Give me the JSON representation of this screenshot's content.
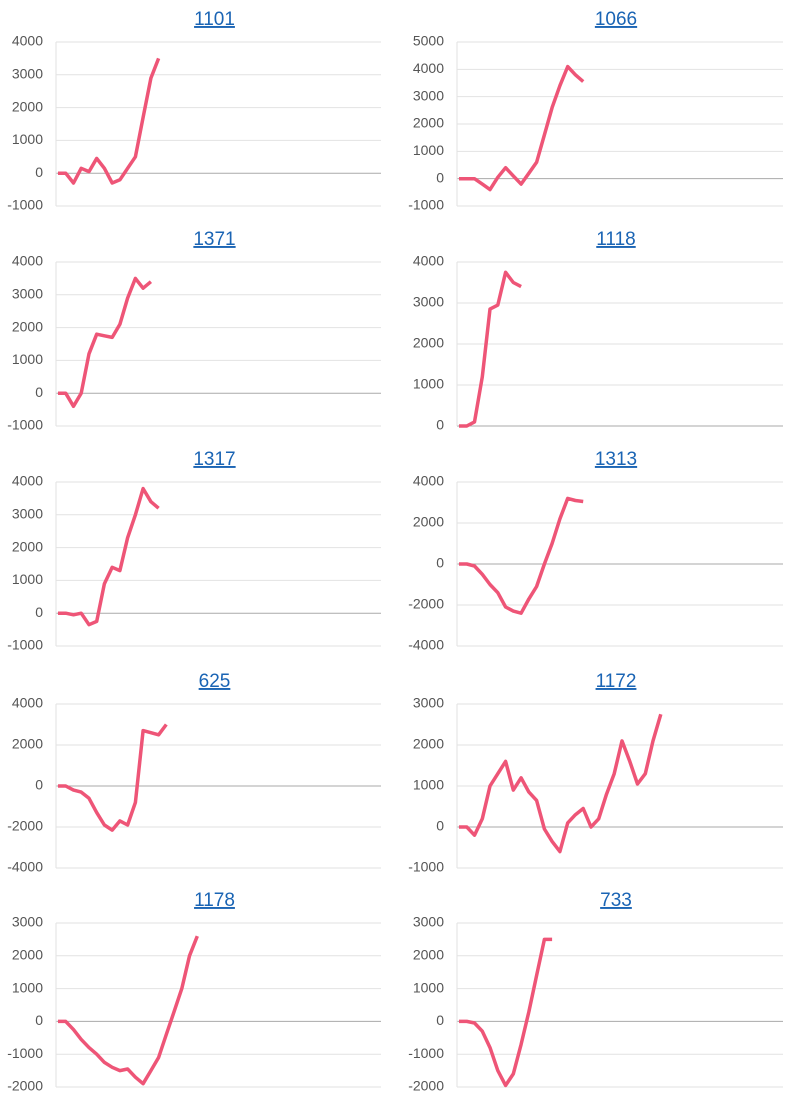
{
  "chart_data": [
    {
      "type": "line",
      "title": "1101",
      "color": "#ee5577",
      "ylim": [
        -1000,
        4000
      ],
      "yticks": [
        -1000,
        0,
        1000,
        2000,
        3000,
        4000
      ],
      "grid": true,
      "values": [
        0,
        0,
        -300,
        150,
        50,
        450,
        150,
        -300,
        -200,
        150,
        500,
        1700,
        2900,
        3500
      ]
    },
    {
      "type": "line",
      "title": "1066",
      "color": "#ee5577",
      "ylim": [
        -1000,
        5000
      ],
      "yticks": [
        -1000,
        0,
        1000,
        2000,
        3000,
        4000,
        5000
      ],
      "grid": true,
      "values": [
        0,
        0,
        0,
        -200,
        -400,
        50,
        400,
        100,
        -200,
        200,
        600,
        1600,
        2600,
        3400,
        4100,
        3800,
        3550
      ]
    },
    {
      "type": "line",
      "title": "1371",
      "color": "#ee5577",
      "ylim": [
        -1000,
        4000
      ],
      "yticks": [
        -1000,
        0,
        1000,
        2000,
        3000,
        4000
      ],
      "grid": true,
      "values": [
        0,
        0,
        -400,
        0,
        1200,
        1800,
        1750,
        1700,
        2100,
        2900,
        3500,
        3200,
        3400
      ]
    },
    {
      "type": "line",
      "title": "1118",
      "color": "#ee5577",
      "ylim": [
        0,
        4000
      ],
      "yticks": [
        0,
        1000,
        2000,
        3000,
        4000
      ],
      "grid": true,
      "values": [
        0,
        0,
        100,
        1200,
        2850,
        2950,
        3750,
        3500,
        3400
      ]
    },
    {
      "type": "line",
      "title": "1317",
      "color": "#ee5577",
      "ylim": [
        -1000,
        4000
      ],
      "yticks": [
        -1000,
        0,
        1000,
        2000,
        3000,
        4000
      ],
      "grid": true,
      "values": [
        0,
        0,
        -50,
        0,
        -350,
        -250,
        900,
        1400,
        1300,
        2300,
        3000,
        3800,
        3400,
        3200
      ]
    },
    {
      "type": "line",
      "title": "1313",
      "color": "#ee5577",
      "ylim": [
        -4000,
        4000
      ],
      "yticks": [
        -4000,
        -2000,
        0,
        2000,
        4000
      ],
      "grid": true,
      "values": [
        0,
        0,
        -100,
        -500,
        -1000,
        -1400,
        -2100,
        -2300,
        -2400,
        -1700,
        -1100,
        0,
        1000,
        2200,
        3200,
        3100,
        3050
      ]
    },
    {
      "type": "line",
      "title": "625",
      "color": "#ee5577",
      "ylim": [
        -4000,
        4000
      ],
      "yticks": [
        -4000,
        -2000,
        0,
        2000,
        4000
      ],
      "grid": true,
      "values": [
        0,
        0,
        -200,
        -300,
        -600,
        -1300,
        -1900,
        -2150,
        -1700,
        -1900,
        -800,
        2700,
        2600,
        2500,
        3000
      ]
    },
    {
      "type": "line",
      "title": "1172",
      "color": "#ee5577",
      "ylim": [
        -1000,
        3000
      ],
      "yticks": [
        -1000,
        0,
        1000,
        2000,
        3000
      ],
      "grid": true,
      "values": [
        0,
        0,
        -200,
        200,
        1000,
        1300,
        1600,
        900,
        1200,
        850,
        650,
        -50,
        -350,
        -600,
        100,
        300,
        450,
        0,
        200,
        800,
        1300,
        2100,
        1600,
        1050,
        1300,
        2100,
        2750
      ]
    },
    {
      "type": "line",
      "title": "1178",
      "color": "#ee5577",
      "ylim": [
        -2000,
        3000
      ],
      "yticks": [
        -2000,
        -1000,
        0,
        1000,
        2000,
        3000
      ],
      "grid": true,
      "values": [
        0,
        0,
        -250,
        -550,
        -800,
        -1000,
        -1250,
        -1400,
        -1500,
        -1450,
        -1700,
        -1900,
        -1500,
        -1100,
        -400,
        300,
        1000,
        2000,
        2600
      ]
    },
    {
      "type": "line",
      "title": "733",
      "color": "#ee5577",
      "ylim": [
        -2000,
        3000
      ],
      "yticks": [
        -2000,
        -1000,
        0,
        1000,
        2000,
        3000
      ],
      "grid": true,
      "values": [
        0,
        0,
        -50,
        -300,
        -800,
        -1500,
        -1950,
        -1600,
        -700,
        300,
        1400,
        2500,
        2500
      ]
    }
  ]
}
